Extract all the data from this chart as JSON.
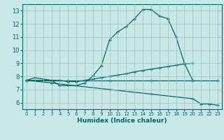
{
  "xlabel": "Humidex (Indice chaleur)",
  "bg_color": "#c8e8e8",
  "line_color": "#006666",
  "grid_color": "#9fbfbf",
  "xlim": [
    -0.5,
    23.5
  ],
  "ylim": [
    5.5,
    13.5
  ],
  "xticks": [
    0,
    1,
    2,
    3,
    4,
    5,
    6,
    7,
    8,
    9,
    10,
    11,
    12,
    13,
    14,
    15,
    16,
    17,
    18,
    19,
    20,
    21,
    22,
    23
  ],
  "yticks": [
    6,
    7,
    8,
    9,
    10,
    11,
    12,
    13
  ],
  "curve1_x": [
    0,
    3,
    4,
    5,
    6,
    7,
    8,
    9,
    10,
    11,
    12,
    13,
    14,
    15,
    16,
    17,
    18,
    19,
    20
  ],
  "curve1_y": [
    7.7,
    7.7,
    7.3,
    7.3,
    7.3,
    7.5,
    8.05,
    8.8,
    10.8,
    11.4,
    11.8,
    12.4,
    13.1,
    13.1,
    12.6,
    12.4,
    11.0,
    9.0,
    7.7
  ],
  "curve2_x": [
    0,
    1,
    3,
    4,
    5,
    6,
    7,
    8,
    9,
    10,
    11,
    12,
    13,
    14,
    15,
    16,
    17,
    18,
    19,
    20
  ],
  "curve2_y": [
    7.7,
    7.9,
    7.7,
    7.7,
    7.6,
    7.6,
    7.7,
    7.8,
    7.9,
    8.0,
    8.1,
    8.2,
    8.35,
    8.45,
    8.55,
    8.65,
    8.75,
    8.85,
    8.95,
    9.0
  ],
  "curve3_x": [
    0,
    3,
    5,
    10,
    15,
    20,
    23
  ],
  "curve3_y": [
    7.7,
    7.7,
    7.7,
    7.7,
    7.7,
    7.7,
    7.7
  ],
  "curve4_x": [
    0,
    3,
    5,
    10,
    15,
    20,
    21,
    22,
    23
  ],
  "curve4_y": [
    7.7,
    7.5,
    7.35,
    7.0,
    6.65,
    6.3,
    5.9,
    5.9,
    5.8
  ]
}
